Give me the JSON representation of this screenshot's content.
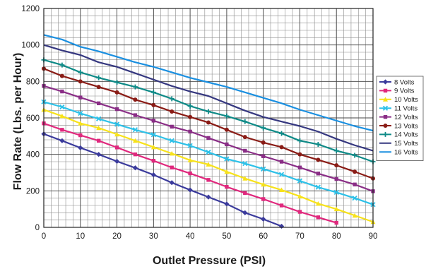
{
  "chart_data": {
    "type": "line",
    "xlabel": "Outlet Pressure (PSI)",
    "ylabel": "Flow Rate (Lbs. per Hour)",
    "xlim": [
      0,
      90
    ],
    "ylim": [
      0,
      1200
    ],
    "x_ticks": [
      0,
      10,
      20,
      30,
      40,
      50,
      60,
      70,
      80,
      90
    ],
    "y_ticks": [
      0,
      200,
      400,
      600,
      800,
      1000,
      1200
    ],
    "x_minor_step": 2,
    "y_minor_step": 40,
    "grid": true,
    "legend_position": "right",
    "series": [
      {
        "name": "8 Volts",
        "color": "#3b3b9c",
        "marker": "diamond",
        "x": [
          0,
          5,
          10,
          15,
          20,
          25,
          30,
          35,
          40,
          45,
          50,
          55,
          60,
          65
        ],
        "y": [
          512,
          475,
          436,
          400,
          362,
          326,
          288,
          245,
          205,
          166,
          128,
          80,
          45,
          6
        ]
      },
      {
        "name": "9 Volts",
        "color": "#e0287d",
        "marker": "square",
        "x": [
          0,
          5,
          10,
          15,
          20,
          25,
          30,
          35,
          40,
          45,
          50,
          55,
          60,
          65,
          70,
          75,
          80
        ],
        "y": [
          570,
          535,
          505,
          475,
          438,
          400,
          365,
          328,
          296,
          260,
          222,
          188,
          155,
          120,
          85,
          55,
          25
        ]
      },
      {
        "name": "10 Volts",
        "color": "#f7e21b",
        "marker": "triangle",
        "x": [
          0,
          5,
          10,
          15,
          20,
          25,
          30,
          35,
          40,
          45,
          50,
          55,
          60,
          65,
          70,
          75,
          80,
          85,
          90
        ],
        "y": [
          645,
          610,
          570,
          545,
          510,
          475,
          440,
          405,
          368,
          345,
          305,
          268,
          235,
          205,
          170,
          130,
          100,
          65,
          30
        ]
      },
      {
        "name": "11 Volts",
        "color": "#2ec1e8",
        "marker": "x",
        "x": [
          0,
          5,
          10,
          15,
          20,
          25,
          30,
          35,
          40,
          45,
          50,
          55,
          60,
          65,
          70,
          75,
          80,
          85,
          90
        ],
        "y": [
          688,
          660,
          625,
          595,
          565,
          535,
          508,
          475,
          448,
          412,
          375,
          350,
          320,
          290,
          255,
          220,
          192,
          160,
          125
        ]
      },
      {
        "name": "12 Volts",
        "color": "#8a2e86",
        "marker": "square",
        "x": [
          0,
          5,
          10,
          15,
          20,
          25,
          30,
          35,
          40,
          45,
          50,
          55,
          60,
          65,
          70,
          75,
          80,
          85,
          90
        ],
        "y": [
          775,
          745,
          712,
          680,
          648,
          615,
          585,
          552,
          525,
          490,
          455,
          420,
          390,
          360,
          328,
          295,
          265,
          235,
          198
        ]
      },
      {
        "name": "13 Volts",
        "color": "#8a1c16",
        "marker": "circle",
        "x": [
          0,
          5,
          10,
          15,
          20,
          25,
          30,
          35,
          40,
          45,
          50,
          55,
          60,
          65,
          70,
          75,
          80,
          85,
          90
        ],
        "y": [
          870,
          830,
          800,
          770,
          740,
          700,
          670,
          635,
          605,
          575,
          535,
          495,
          465,
          440,
          400,
          370,
          340,
          305,
          268
        ]
      },
      {
        "name": "14 Volts",
        "color": "#0e8a87",
        "marker": "plus",
        "x": [
          0,
          5,
          10,
          15,
          20,
          25,
          30,
          35,
          40,
          45,
          50,
          55,
          60,
          65,
          70,
          75,
          80,
          85,
          90
        ],
        "y": [
          918,
          890,
          850,
          820,
          795,
          770,
          740,
          705,
          665,
          635,
          610,
          580,
          545,
          515,
          475,
          455,
          420,
          395,
          360
        ]
      },
      {
        "name": "15 Volts",
        "color": "#35377f",
        "marker": "line",
        "x": [
          0,
          5,
          10,
          15,
          20,
          25,
          30,
          35,
          40,
          45,
          50,
          55,
          60,
          65,
          70,
          75,
          80,
          85,
          90
        ],
        "y": [
          1000,
          970,
          945,
          905,
          880,
          845,
          810,
          775,
          745,
          720,
          680,
          640,
          605,
          580,
          555,
          525,
          485,
          450,
          420
        ]
      },
      {
        "name": "16 Volts",
        "color": "#1a8fe0",
        "marker": "line",
        "x": [
          0,
          5,
          10,
          15,
          20,
          25,
          30,
          35,
          40,
          45,
          50,
          55,
          60,
          65,
          70,
          75,
          80,
          85,
          90
        ],
        "y": [
          1055,
          1030,
          990,
          965,
          935,
          905,
          880,
          850,
          820,
          795,
          770,
          740,
          710,
          680,
          645,
          615,
          585,
          555,
          530
        ]
      }
    ]
  }
}
